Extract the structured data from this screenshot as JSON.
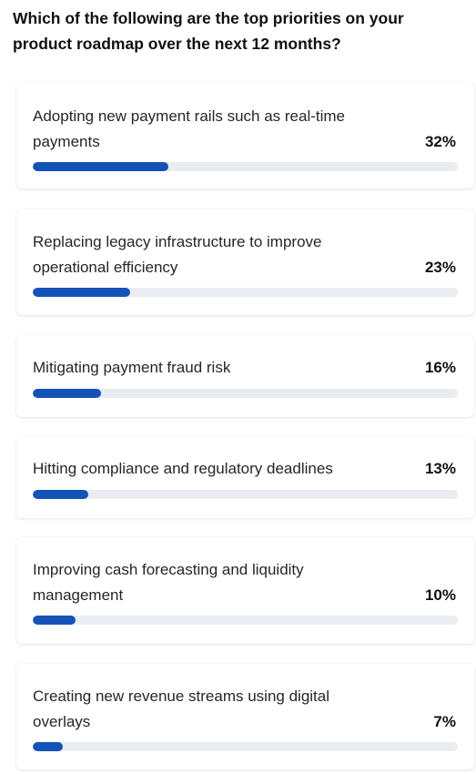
{
  "question": "Which of the following are the top priorities on your product roadmap over the next 12 months?",
  "accent_color": "#1552b8",
  "track_color": "#e9ecf0",
  "options": [
    {
      "label": "Adopting new payment rails such as real-time payments",
      "percent_label": "32%",
      "value": 32
    },
    {
      "label": "Replacing legacy infrastructure to improve operational efficiency",
      "percent_label": "23%",
      "value": 23
    },
    {
      "label": "Mitigating payment fraud risk",
      "percent_label": "16%",
      "value": 16
    },
    {
      "label": "Hitting compliance and regulatory deadlines",
      "percent_label": "13%",
      "value": 13
    },
    {
      "label": "Improving cash forecasting and liquidity management",
      "percent_label": "10%",
      "value": 10
    },
    {
      "label": "Creating new revenue streams using digital overlays",
      "percent_label": "7%",
      "value": 7
    }
  ]
}
